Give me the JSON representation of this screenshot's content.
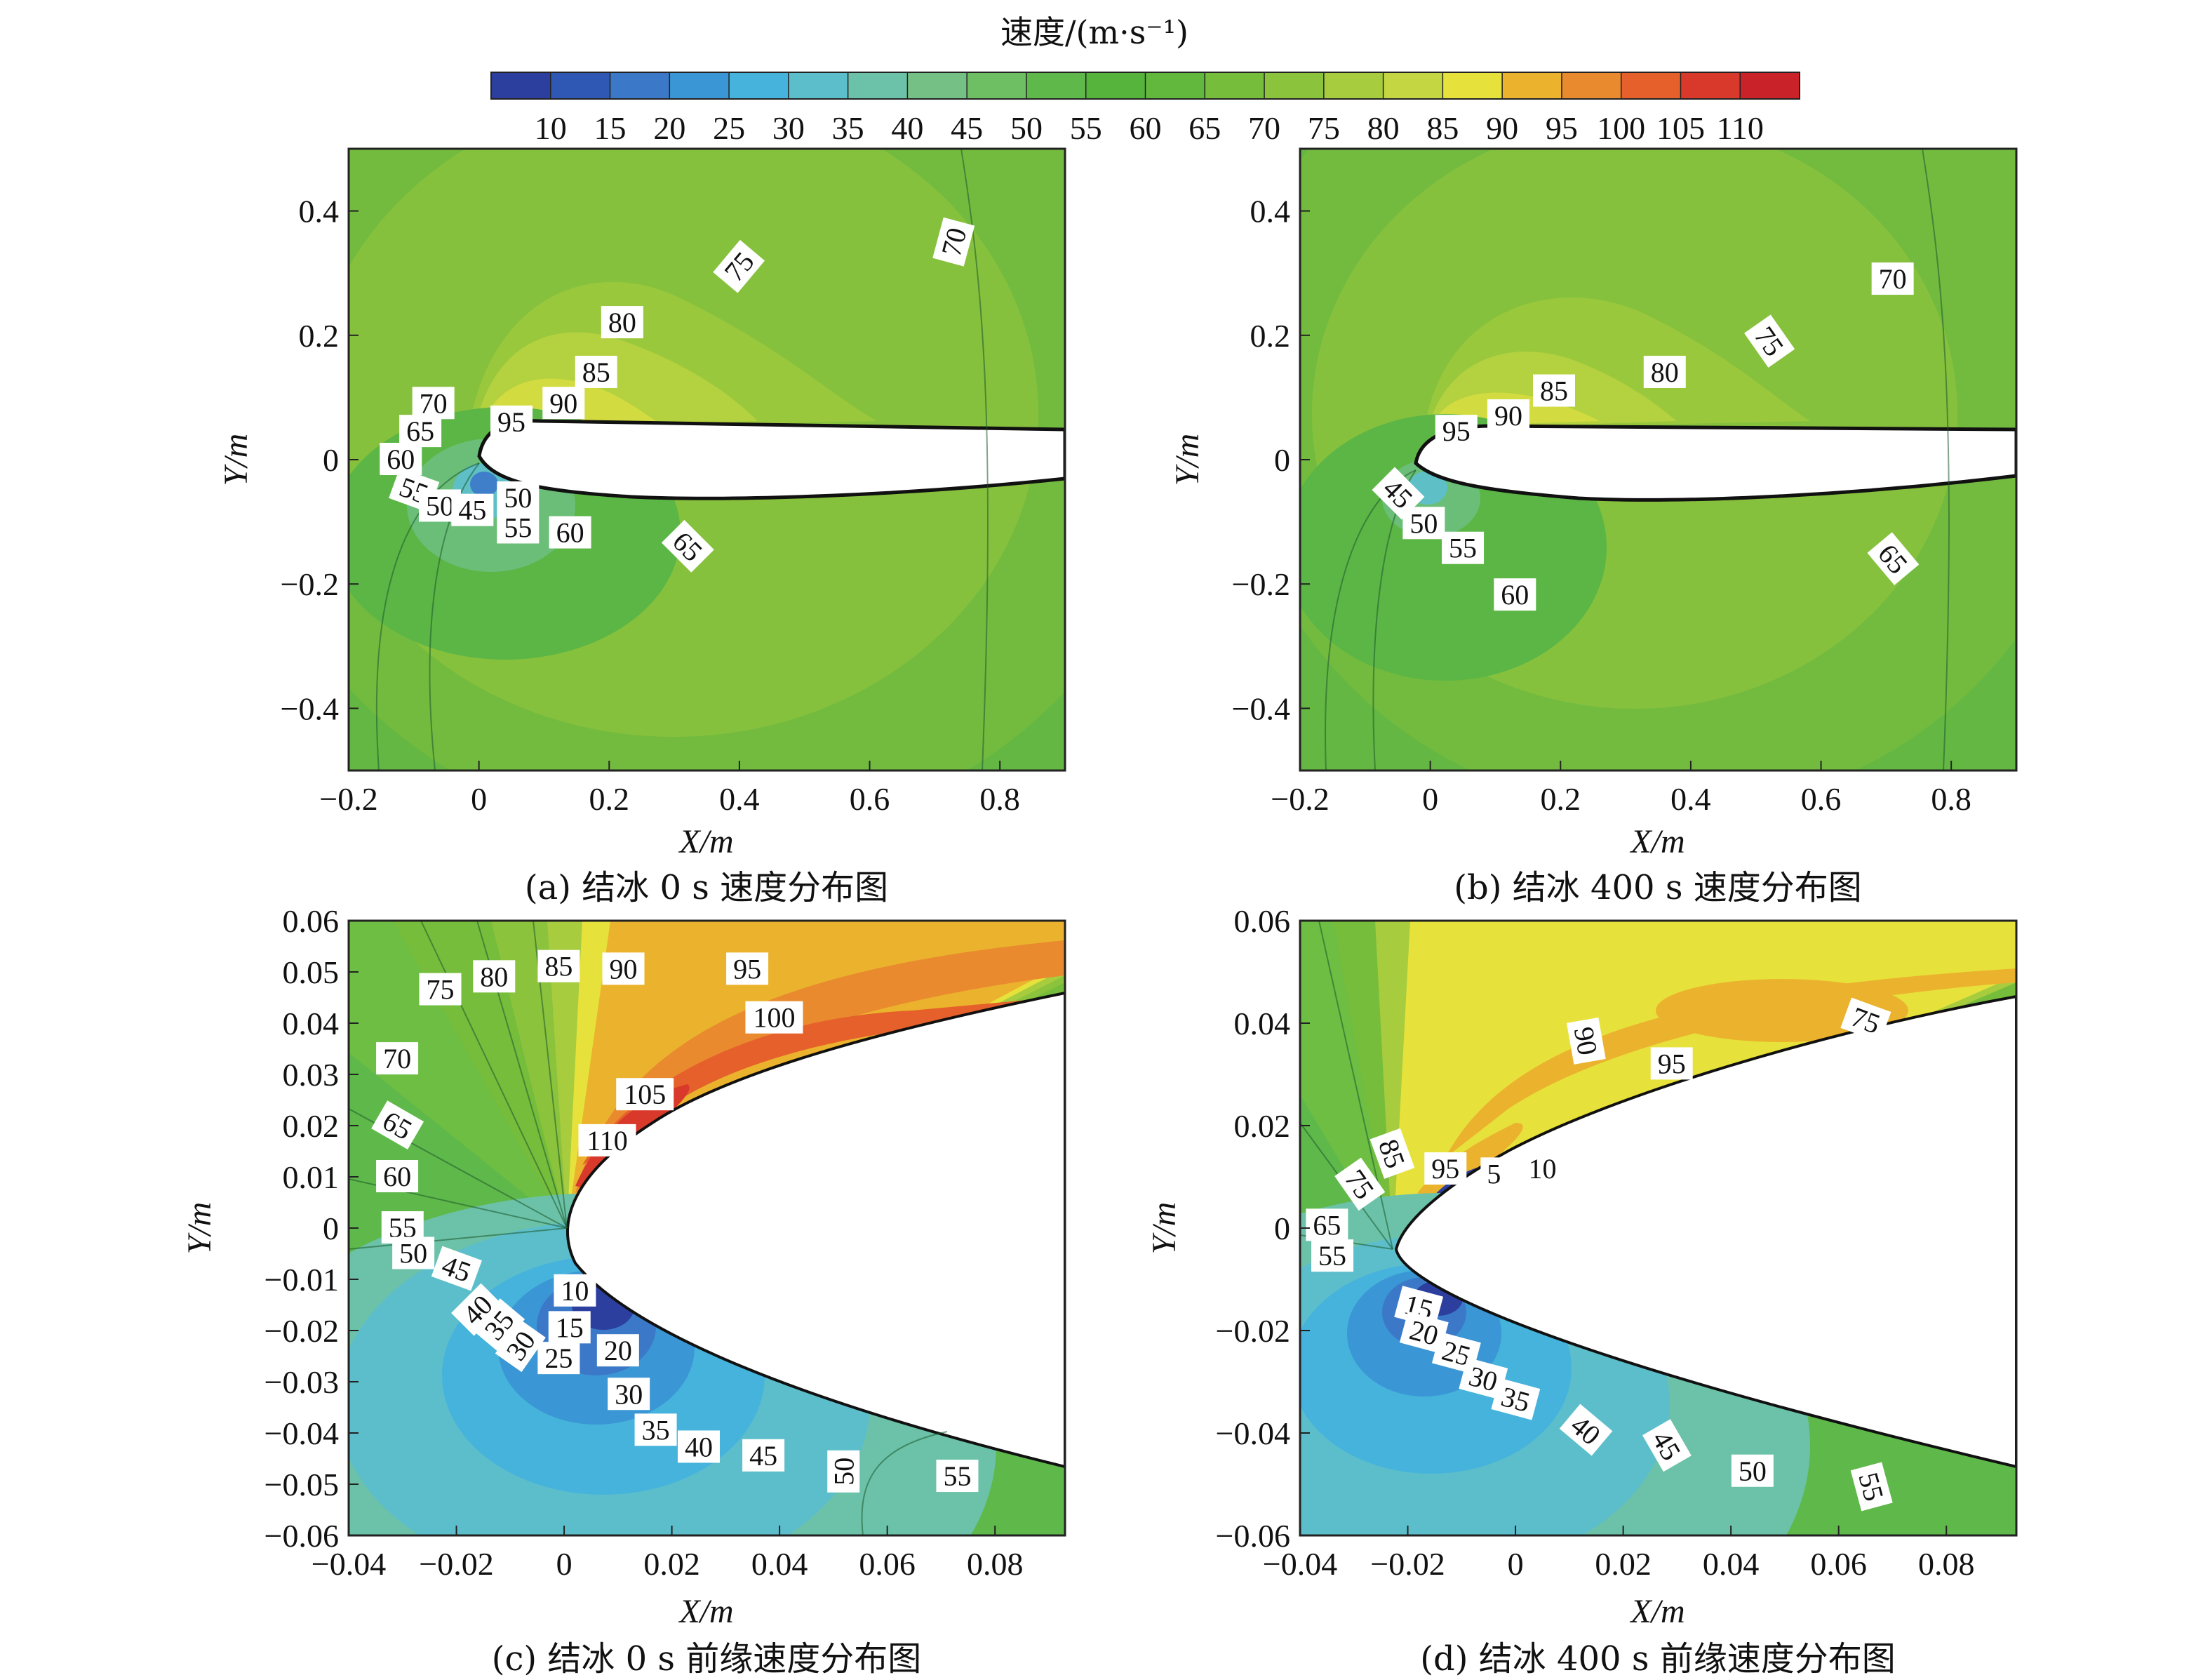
{
  "colorbar": {
    "title": "速度/(m·s⁻¹)",
    "ticks": [
      "10",
      "15",
      "20",
      "25",
      "30",
      "35",
      "40",
      "45",
      "50",
      "55",
      "60",
      "65",
      "70",
      "75",
      "80",
      "85",
      "90",
      "95",
      "100",
      "105",
      "110"
    ],
    "colors": [
      "#2c3f9e",
      "#2f58b4",
      "#3b79c8",
      "#3a96d4",
      "#45b3db",
      "#5dbecb",
      "#6cc2a8",
      "#75c185",
      "#6ebf64",
      "#5fb84a",
      "#56b43c",
      "#62b83c",
      "#76bd3c",
      "#8cc33c",
      "#a7cc3e",
      "#c4d743",
      "#e7e23b",
      "#ebb32d",
      "#e98a2e",
      "#e5602a",
      "#d8392a",
      "#c92228"
    ]
  },
  "chart_data": [
    {
      "type": "contour",
      "caption": "(a) 结冰 0 s 速度分布图",
      "xlabel": "X/m",
      "ylabel": "Y/m",
      "xlim": [
        -0.2,
        0.9
      ],
      "ylim": [
        -0.5,
        0.5
      ],
      "xticks": [
        "−0.2",
        "0",
        "0.2",
        "0.4",
        "0.6",
        "0.8"
      ],
      "yticks": [
        "0.4",
        "0.2",
        "0",
        "−0.2",
        "−0.4"
      ],
      "background_level": 60,
      "contour_labels": [
        {
          "text": "70",
          "x": 0.73,
          "y": 0.35,
          "angle": 75
        },
        {
          "text": "75",
          "x": 0.4,
          "y": 0.31,
          "angle": 50
        },
        {
          "text": "80",
          "x": 0.22,
          "y": 0.22,
          "angle": 0
        },
        {
          "text": "85",
          "x": 0.18,
          "y": 0.14,
          "angle": 0
        },
        {
          "text": "90",
          "x": 0.13,
          "y": 0.09,
          "angle": 0
        },
        {
          "text": "95",
          "x": 0.05,
          "y": 0.06,
          "angle": 0
        },
        {
          "text": "70",
          "x": -0.07,
          "y": 0.09,
          "angle": 0
        },
        {
          "text": "65",
          "x": -0.09,
          "y": 0.045,
          "angle": 0
        },
        {
          "text": "60",
          "x": -0.12,
          "y": 0.0,
          "angle": 0
        },
        {
          "text": "55",
          "x": -0.1,
          "y": -0.05,
          "angle": -20
        },
        {
          "text": "50",
          "x": -0.06,
          "y": -0.075,
          "angle": 0
        },
        {
          "text": "45",
          "x": -0.01,
          "y": -0.082,
          "angle": 0
        },
        {
          "text": "50",
          "x": 0.06,
          "y": -0.062,
          "angle": 0
        },
        {
          "text": "55",
          "x": 0.06,
          "y": -0.11,
          "angle": 0
        },
        {
          "text": "60",
          "x": 0.14,
          "y": -0.118,
          "angle": 0
        },
        {
          "text": "65",
          "x": 0.32,
          "y": -0.14,
          "angle": -45
        }
      ]
    },
    {
      "type": "contour",
      "caption": "(b) 结冰 400 s 速度分布图",
      "xlabel": "X/m",
      "ylabel": "Y/m",
      "xlim": [
        -0.2,
        0.9
      ],
      "ylim": [
        -0.5,
        0.5
      ],
      "xticks": [
        "−0.2",
        "0",
        "0.2",
        "0.4",
        "0.6",
        "0.8"
      ],
      "yticks": [
        "0.4",
        "0.2",
        "0",
        "−0.2",
        "−0.4"
      ],
      "background_level": 60,
      "contour_labels": [
        {
          "text": "70",
          "x": 0.71,
          "y": 0.29,
          "angle": 0
        },
        {
          "text": "75",
          "x": 0.52,
          "y": 0.19,
          "angle": -55
        },
        {
          "text": "80",
          "x": 0.36,
          "y": 0.14,
          "angle": 0
        },
        {
          "text": "85",
          "x": 0.19,
          "y": 0.11,
          "angle": 0
        },
        {
          "text": "90",
          "x": 0.12,
          "y": 0.07,
          "angle": 0
        },
        {
          "text": "95",
          "x": 0.04,
          "y": 0.045,
          "angle": 0
        },
        {
          "text": "45",
          "x": -0.05,
          "y": -0.055,
          "angle": -45
        },
        {
          "text": "50",
          "x": -0.01,
          "y": -0.103,
          "angle": 0
        },
        {
          "text": "55",
          "x": 0.05,
          "y": -0.143,
          "angle": 0
        },
        {
          "text": "60",
          "x": 0.13,
          "y": -0.218,
          "angle": 0
        },
        {
          "text": "65",
          "x": 0.71,
          "y": -0.16,
          "angle": -50
        }
      ]
    },
    {
      "type": "contour",
      "caption": "(c) 结冰 0 s 前缘速度分布图",
      "xlabel": "X/m",
      "ylabel": "Y/m",
      "xlim": [
        -0.04,
        0.093
      ],
      "ylim": [
        -0.06,
        0.06
      ],
      "xticks": [
        "−0.04",
        "−0.02",
        "0",
        "0.02",
        "0.04",
        "0.06",
        "0.08"
      ],
      "yticks": [
        "0.06",
        "0.05",
        "0.04",
        "0.03",
        "0.02",
        "0.01",
        "0",
        "−0.01",
        "−0.02",
        "−0.03",
        "−0.04",
        "−0.05",
        "−0.06"
      ],
      "background_level": 60,
      "contour_labels": [
        {
          "text": "75",
          "x": -0.023,
          "y": 0.0465,
          "angle": 0
        },
        {
          "text": "80",
          "x": -0.013,
          "y": 0.049,
          "angle": 0
        },
        {
          "text": "85",
          "x": -0.001,
          "y": 0.051,
          "angle": 0
        },
        {
          "text": "90",
          "x": 0.011,
          "y": 0.0505,
          "angle": 0
        },
        {
          "text": "95",
          "x": 0.034,
          "y": 0.0505,
          "angle": 0
        },
        {
          "text": "100",
          "x": 0.039,
          "y": 0.041,
          "angle": 0
        },
        {
          "text": "105",
          "x": 0.015,
          "y": 0.026,
          "angle": 0
        },
        {
          "text": "110",
          "x": 0.008,
          "y": 0.017,
          "angle": 0
        },
        {
          "text": "70",
          "x": -0.031,
          "y": 0.033,
          "angle": 0
        },
        {
          "text": "65",
          "x": -0.031,
          "y": 0.02,
          "angle": -30
        },
        {
          "text": "60",
          "x": -0.031,
          "y": 0.01,
          "angle": 0
        },
        {
          "text": "55",
          "x": -0.03,
          "y": 0.0,
          "angle": 0
        },
        {
          "text": "50",
          "x": -0.028,
          "y": -0.005,
          "angle": 0
        },
        {
          "text": "45",
          "x": -0.02,
          "y": -0.008,
          "angle": -20
        },
        {
          "text": "40",
          "x": -0.016,
          "y": -0.016,
          "angle": 45
        },
        {
          "text": "35",
          "x": -0.012,
          "y": -0.019,
          "angle": 50
        },
        {
          "text": "30",
          "x": -0.008,
          "y": -0.023,
          "angle": 55
        },
        {
          "text": "10",
          "x": 0.002,
          "y": -0.0123,
          "angle": 0
        },
        {
          "text": "15",
          "x": 0.001,
          "y": -0.0195,
          "angle": 0
        },
        {
          "text": "25",
          "x": -0.001,
          "y": -0.0255,
          "angle": 0
        },
        {
          "text": "20",
          "x": 0.01,
          "y": -0.024,
          "angle": 0
        },
        {
          "text": "30",
          "x": 0.012,
          "y": -0.0325,
          "angle": 0
        },
        {
          "text": "35",
          "x": 0.017,
          "y": -0.0395,
          "angle": 0
        },
        {
          "text": "40",
          "x": 0.025,
          "y": -0.0428,
          "angle": 0
        },
        {
          "text": "45",
          "x": 0.037,
          "y": -0.0445,
          "angle": 0
        },
        {
          "text": "50",
          "x": 0.052,
          "y": -0.0475,
          "angle": 90
        },
        {
          "text": "55",
          "x": 0.073,
          "y": -0.0485,
          "angle": 0
        }
      ]
    },
    {
      "type": "contour",
      "caption": "(d) 结冰 400 s 前缘速度分布图",
      "xlabel": "X/m",
      "ylabel": "Y/m",
      "xlim": [
        -0.04,
        0.093
      ],
      "ylim": [
        -0.06,
        0.06
      ],
      "xticks": [
        "−0.04",
        "−0.02",
        "0",
        "0.02",
        "0.04",
        "0.06",
        "0.08"
      ],
      "yticks": [
        "0.06",
        "0.04",
        "0.02",
        "0",
        "−0.02",
        "−0.04",
        "−0.06"
      ],
      "background_level": 60,
      "contour_labels": [
        {
          "text": "75",
          "x": 0.065,
          "y": 0.0405,
          "angle": -20
        },
        {
          "text": "90",
          "x": 0.013,
          "y": 0.0365,
          "angle": -80
        },
        {
          "text": "95",
          "x": 0.029,
          "y": 0.032,
          "angle": 0
        },
        {
          "text": "85",
          "x": -0.023,
          "y": 0.0145,
          "angle": -70
        },
        {
          "text": "75",
          "x": -0.029,
          "y": 0.0085,
          "angle": -55
        },
        {
          "text": "95",
          "x": -0.013,
          "y": 0.0115,
          "angle": 0
        },
        {
          "text": "5",
          "x": -0.004,
          "y": 0.0105,
          "angle": 0
        },
        {
          "text": "10",
          "x": 0.005,
          "y": 0.0115,
          "angle": 0
        },
        {
          "text": "65",
          "x": -0.035,
          "y": 0.0005,
          "angle": 0
        },
        {
          "text": "55",
          "x": -0.034,
          "y": -0.0055,
          "angle": 0
        },
        {
          "text": "15",
          "x": -0.018,
          "y": -0.0155,
          "angle": -15
        },
        {
          "text": "20",
          "x": -0.017,
          "y": -0.0205,
          "angle": -15
        },
        {
          "text": "25",
          "x": -0.011,
          "y": -0.0245,
          "angle": -15
        },
        {
          "text": "30",
          "x": -0.006,
          "y": -0.0295,
          "angle": -15
        },
        {
          "text": "35",
          "x": 0.0,
          "y": -0.0335,
          "angle": -15
        },
        {
          "text": "40",
          "x": 0.013,
          "y": -0.0395,
          "angle": -40
        },
        {
          "text": "45",
          "x": 0.028,
          "y": -0.0425,
          "angle": -60
        },
        {
          "text": "50",
          "x": 0.044,
          "y": -0.0475,
          "angle": 0
        },
        {
          "text": "55",
          "x": 0.066,
          "y": -0.0505,
          "angle": -75
        }
      ]
    }
  ]
}
